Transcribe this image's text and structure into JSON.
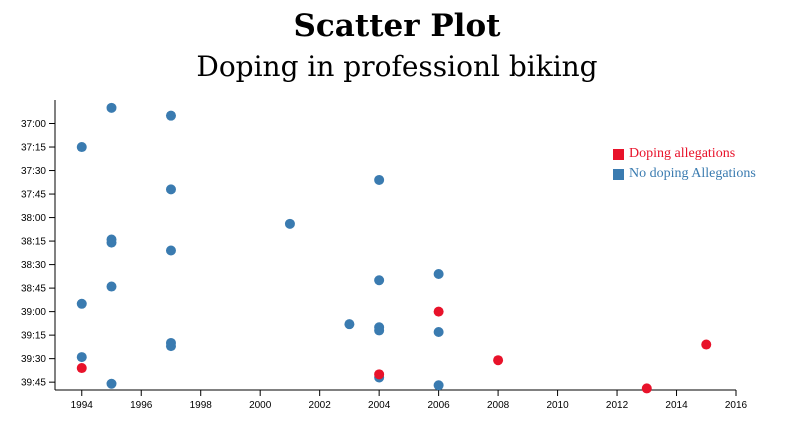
{
  "title": "Scatter Plot",
  "subtitle": "Doping in professionl biking",
  "colors": {
    "doping": "#e8122a",
    "clean": "#3a7bb0"
  },
  "legend": [
    {
      "key": "doping",
      "label": "Doping allegations"
    },
    {
      "key": "clean",
      "label": "No doping Allegations"
    }
  ],
  "chart_data": {
    "type": "scatter",
    "title": "Scatter Plot",
    "subtitle": "Doping in professionl biking",
    "xlabel": "",
    "ylabel": "",
    "xlim": [
      1993.1,
      2016
    ],
    "ylim": [
      "36:45",
      "39:50"
    ],
    "y_reversed": true,
    "x_ticks": [
      1994,
      1996,
      1998,
      2000,
      2002,
      2004,
      2006,
      2008,
      2010,
      2012,
      2014,
      2016
    ],
    "y_ticks": [
      "37:00",
      "37:15",
      "37:30",
      "37:45",
      "38:00",
      "38:15",
      "38:30",
      "38:45",
      "39:00",
      "39:15",
      "39:30",
      "39:45"
    ],
    "grid": false,
    "legend_position": "top-right",
    "series": [
      {
        "name": "No doping Allegations",
        "color_key": "clean",
        "points": [
          {
            "x": 1995,
            "y": "36:50"
          },
          {
            "x": 1997,
            "y": "36:55"
          },
          {
            "x": 1994,
            "y": "37:15"
          },
          {
            "x": 2004,
            "y": "37:36"
          },
          {
            "x": 1997,
            "y": "37:42"
          },
          {
            "x": 2001,
            "y": "38:04"
          },
          {
            "x": 1995,
            "y": "38:14"
          },
          {
            "x": 1995,
            "y": "38:16"
          },
          {
            "x": 1997,
            "y": "38:21"
          },
          {
            "x": 2006,
            "y": "38:36"
          },
          {
            "x": 2004,
            "y": "38:40"
          },
          {
            "x": 1995,
            "y": "38:44"
          },
          {
            "x": 1994,
            "y": "38:55"
          },
          {
            "x": 2003,
            "y": "39:08"
          },
          {
            "x": 2004,
            "y": "39:10"
          },
          {
            "x": 2004,
            "y": "39:12"
          },
          {
            "x": 2006,
            "y": "39:13"
          },
          {
            "x": 1997,
            "y": "39:20"
          },
          {
            "x": 1997,
            "y": "39:22"
          },
          {
            "x": 1994,
            "y": "39:29"
          },
          {
            "x": 2004,
            "y": "39:42"
          },
          {
            "x": 1995,
            "y": "39:46"
          },
          {
            "x": 2006,
            "y": "39:47"
          }
        ]
      },
      {
        "name": "Doping allegations",
        "color_key": "doping",
        "points": [
          {
            "x": 2006,
            "y": "39:00"
          },
          {
            "x": 2015,
            "y": "39:21"
          },
          {
            "x": 2008,
            "y": "39:31"
          },
          {
            "x": 1994,
            "y": "39:36"
          },
          {
            "x": 2004,
            "y": "39:40"
          },
          {
            "x": 2013,
            "y": "39:49"
          }
        ]
      }
    ]
  }
}
